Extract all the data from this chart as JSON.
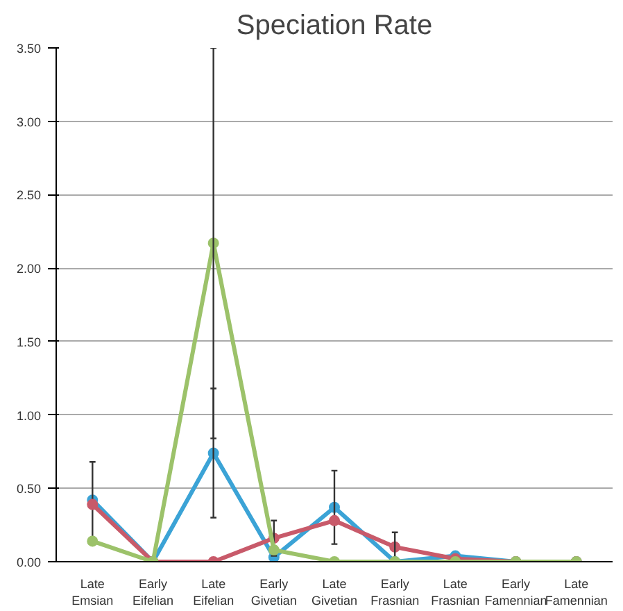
{
  "chart_data": {
    "type": "line",
    "title": "Speciation Rate",
    "categories": [
      "Late Emsian",
      "Early Eifelian",
      "Late Eifelian",
      "Early Givetian",
      "Late Givetian",
      "Early Frasnian",
      "Late Frasnian",
      "Early Famennian",
      "Late Famennian"
    ],
    "series": [
      {
        "color": "#3ba3d6",
        "values": [
          0.42,
          0.0,
          0.74,
          0.03,
          0.37,
          0.0,
          0.04,
          0.0,
          0.0
        ],
        "errors": [
          0.26,
          null,
          0.44,
          null,
          0.25,
          null,
          null,
          null,
          null
        ]
      },
      {
        "color": "#c85a6a",
        "values": [
          0.39,
          0.0,
          0.0,
          0.16,
          0.28,
          0.1,
          0.02,
          0.0,
          0.0
        ],
        "errors": [
          null,
          null,
          null,
          0.12,
          null,
          0.1,
          null,
          null,
          null
        ]
      },
      {
        "color": "#9cc26a",
        "values": [
          0.14,
          0.0,
          2.17,
          0.08,
          0.0,
          0.0,
          0.0,
          0.0,
          0.0
        ],
        "errors": [
          null,
          null,
          1.33,
          null,
          null,
          null,
          null,
          null,
          null
        ]
      }
    ],
    "ylim": [
      0,
      3.5
    ],
    "yticks": [
      {
        "value": 0,
        "label": "0.00"
      },
      {
        "value": 0.5,
        "label": "0.50"
      },
      {
        "value": 1.0,
        "label": "1.00"
      },
      {
        "value": 1.5,
        "label": "1.50"
      },
      {
        "value": 2.0,
        "label": "2.00"
      },
      {
        "value": 2.5,
        "label": "2.50"
      },
      {
        "value": 3.0,
        "label": "3.00"
      },
      {
        "value": 3.5,
        "label": "3.50"
      }
    ],
    "grid": "y",
    "marker": "circle",
    "line_style": "solid"
  }
}
